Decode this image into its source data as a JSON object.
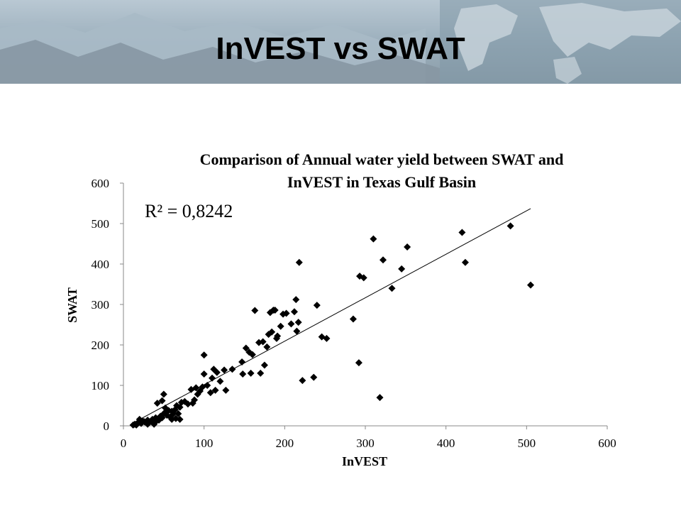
{
  "slide": {
    "title": "InVEST vs SWAT",
    "banner_color": "#9fb2bf"
  },
  "chart_data": {
    "type": "scatter",
    "title_line1": "Comparison  of Annual water yield between SWAT and",
    "title_line2": "InVEST in Texas Gulf Basin",
    "xlabel": "InVEST",
    "ylabel": "SWAT",
    "xlim": [
      0,
      600
    ],
    "ylim": [
      0,
      600
    ],
    "xticks": [
      "0",
      "100",
      "200",
      "300",
      "400",
      "500",
      "600"
    ],
    "yticks": [
      "0",
      "100",
      "200",
      "300",
      "400",
      "500",
      "600"
    ],
    "annotation": "R² = 0,8242",
    "trendline": {
      "x": [
        10,
        505
      ],
      "y": [
        5,
        537
      ]
    },
    "grid": false,
    "marker_color": "#000000",
    "points": [
      [
        12,
        2
      ],
      [
        14,
        4
      ],
      [
        16,
        2
      ],
      [
        18,
        8
      ],
      [
        20,
        16
      ],
      [
        22,
        6
      ],
      [
        24,
        12
      ],
      [
        26,
        10
      ],
      [
        28,
        8
      ],
      [
        30,
        4
      ],
      [
        30,
        14
      ],
      [
        32,
        8
      ],
      [
        34,
        12
      ],
      [
        36,
        16
      ],
      [
        38,
        4
      ],
      [
        40,
        10
      ],
      [
        40,
        20
      ],
      [
        42,
        56
      ],
      [
        44,
        14
      ],
      [
        46,
        24
      ],
      [
        48,
        20
      ],
      [
        48,
        62
      ],
      [
        50,
        30
      ],
      [
        50,
        78
      ],
      [
        52,
        34
      ],
      [
        52,
        44
      ],
      [
        54,
        26
      ],
      [
        56,
        38
      ],
      [
        58,
        22
      ],
      [
        60,
        16
      ],
      [
        60,
        36
      ],
      [
        62,
        30
      ],
      [
        64,
        40
      ],
      [
        65,
        18
      ],
      [
        66,
        50
      ],
      [
        68,
        30
      ],
      [
        70,
        46
      ],
      [
        70,
        16
      ],
      [
        72,
        58
      ],
      [
        76,
        60
      ],
      [
        80,
        54
      ],
      [
        84,
        90
      ],
      [
        86,
        56
      ],
      [
        88,
        64
      ],
      [
        90,
        94
      ],
      [
        92,
        78
      ],
      [
        95,
        86
      ],
      [
        98,
        96
      ],
      [
        100,
        128
      ],
      [
        100,
        175
      ],
      [
        104,
        100
      ],
      [
        108,
        82
      ],
      [
        110,
        118
      ],
      [
        112,
        140
      ],
      [
        114,
        88
      ],
      [
        116,
        132
      ],
      [
        120,
        110
      ],
      [
        125,
        138
      ],
      [
        127,
        88
      ],
      [
        135,
        140
      ],
      [
        147,
        158
      ],
      [
        148,
        128
      ],
      [
        152,
        192
      ],
      [
        156,
        182
      ],
      [
        158,
        130
      ],
      [
        160,
        176
      ],
      [
        163,
        285
      ],
      [
        168,
        206
      ],
      [
        170,
        130
      ],
      [
        173,
        208
      ],
      [
        175,
        150
      ],
      [
        178,
        195
      ],
      [
        180,
        226
      ],
      [
        182,
        280
      ],
      [
        184,
        232
      ],
      [
        186,
        286
      ],
      [
        188,
        286
      ],
      [
        190,
        216
      ],
      [
        191,
        222
      ],
      [
        195,
        246
      ],
      [
        198,
        276
      ],
      [
        202,
        278
      ],
      [
        208,
        252
      ],
      [
        212,
        282
      ],
      [
        214,
        312
      ],
      [
        215,
        234
      ],
      [
        217,
        256
      ],
      [
        218,
        404
      ],
      [
        222,
        112
      ],
      [
        236,
        120
      ],
      [
        240,
        298
      ],
      [
        246,
        220
      ],
      [
        252,
        216
      ],
      [
        285,
        264
      ],
      [
        292,
        156
      ],
      [
        293,
        370
      ],
      [
        298,
        366
      ],
      [
        310,
        462
      ],
      [
        318,
        70
      ],
      [
        322,
        410
      ],
      [
        333,
        340
      ],
      [
        345,
        388
      ],
      [
        352,
        442
      ],
      [
        420,
        478
      ],
      [
        424,
        404
      ],
      [
        480,
        494
      ],
      [
        505,
        348
      ]
    ]
  }
}
